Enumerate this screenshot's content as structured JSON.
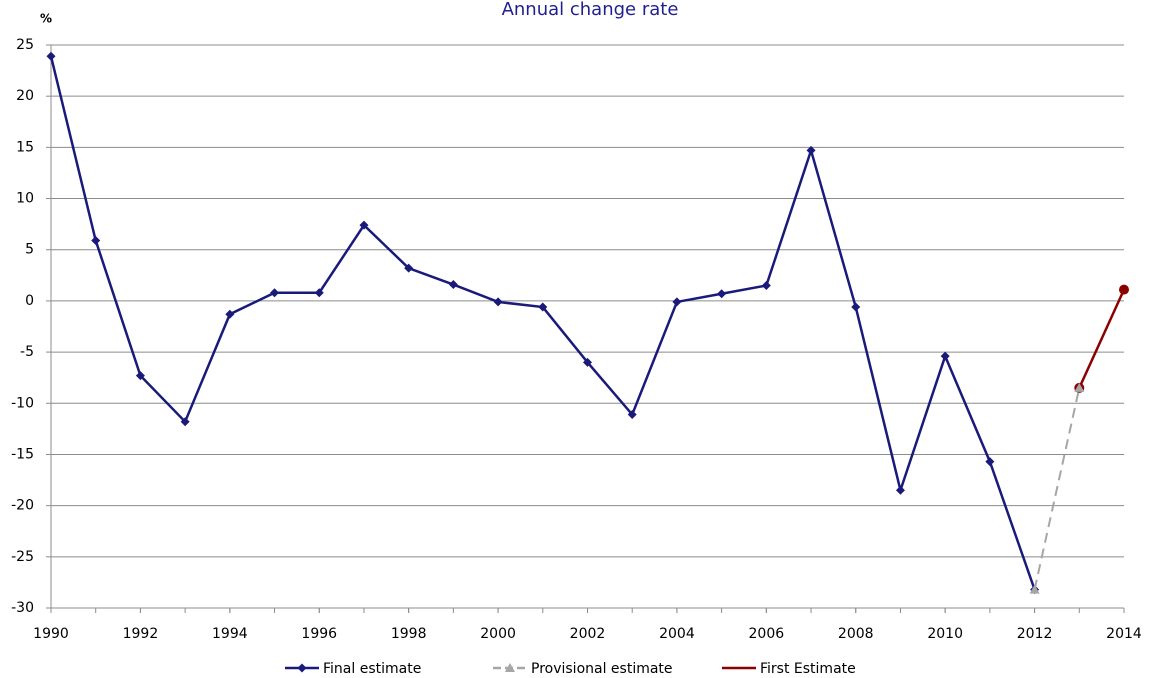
{
  "chart_data": {
    "type": "line",
    "title": "Annual change rate",
    "y_label": "%",
    "xlim": [
      1990,
      2014
    ],
    "xticks": [
      1990,
      1992,
      1994,
      1996,
      1998,
      2000,
      2002,
      2004,
      2006,
      2008,
      2010,
      2012,
      2014
    ],
    "ylim": [
      -30,
      25
    ],
    "yticks": [
      -30,
      -25,
      -20,
      -15,
      -10,
      -5,
      0,
      5,
      10,
      15,
      20,
      25
    ],
    "grid": true,
    "series": [
      {
        "name": "Final estimate",
        "color": "#1a1a7a",
        "marker": "diamond",
        "dashed": false,
        "x": [
          1990,
          1991,
          1992,
          1993,
          1994,
          1995,
          1996,
          1997,
          1998,
          1999,
          2000,
          2001,
          2002,
          2003,
          2004,
          2005,
          2006,
          2007,
          2008,
          2009,
          2010,
          2011,
          2012
        ],
        "values": [
          23.9,
          5.9,
          -7.3,
          -11.8,
          -1.3,
          0.8,
          0.8,
          7.4,
          3.2,
          1.6,
          -0.1,
          -0.6,
          -6.0,
          -11.1,
          -0.1,
          0.7,
          1.5,
          14.7,
          -0.6,
          -18.5,
          -5.4,
          -15.7,
          -28.2
        ]
      },
      {
        "name": "Provisional estimate",
        "color": "#a6a6a6",
        "marker": "triangle",
        "dashed": true,
        "x": [
          2012,
          2013
        ],
        "values": [
          -28.2,
          -8.5
        ]
      },
      {
        "name": "First Estimate",
        "color": "#8b0000",
        "marker": "circle",
        "dashed": false,
        "x": [
          2013,
          2014
        ],
        "values": [
          -8.5,
          1.1
        ]
      }
    ]
  }
}
